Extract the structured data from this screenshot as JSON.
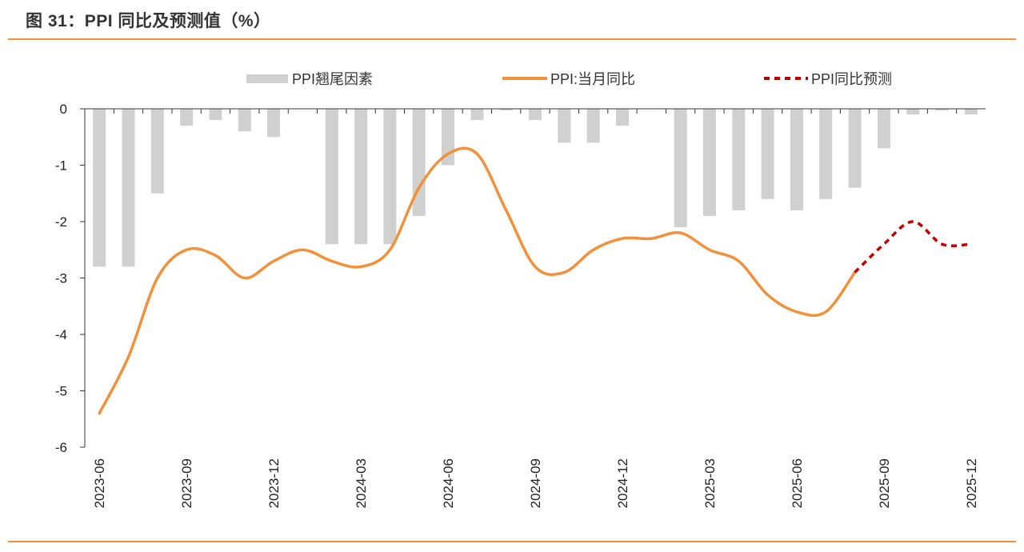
{
  "title": "图 31：PPI 同比及预测值（%）",
  "colors": {
    "bar": "#d0d0d0",
    "line": "#f0913c",
    "forecast": "#c00000",
    "accent_rule": "#f0913c"
  },
  "chart_data": {
    "type": "bar+line",
    "ylim": [
      -6,
      0
    ],
    "yticks": [
      0,
      -1,
      -2,
      -3,
      -4,
      -5,
      -6
    ],
    "months": [
      "2023-06",
      "2023-07",
      "2023-08",
      "2023-09",
      "2023-10",
      "2023-11",
      "2023-12",
      "2024-01",
      "2024-02",
      "2024-03",
      "2024-04",
      "2024-05",
      "2024-06",
      "2024-07",
      "2024-08",
      "2024-09",
      "2024-10",
      "2024-11",
      "2024-12",
      "2025-01",
      "2025-02",
      "2025-03",
      "2025-04",
      "2025-05",
      "2025-06",
      "2025-07",
      "2025-08",
      "2025-09",
      "2025-10",
      "2025-11",
      "2025-12"
    ],
    "xtick_labels": [
      "2023-06",
      "2023-09",
      "2023-12",
      "2024-03",
      "2024-06",
      "2024-09",
      "2024-12",
      "2025-03",
      "2025-06",
      "2025-09",
      "2025-12"
    ],
    "legend": [
      "PPI翘尾因素",
      "PPI:当月同比",
      "PPI同比预测"
    ],
    "series": [
      {
        "name": "PPI翘尾因素",
        "kind": "bar",
        "values": [
          -2.8,
          -2.8,
          -1.5,
          -0.3,
          -0.2,
          -0.4,
          -0.5,
          null,
          -2.4,
          -2.4,
          -2.4,
          -1.9,
          -1.0,
          -0.2,
          -0.03,
          -0.2,
          -0.6,
          -0.6,
          -0.3,
          null,
          -2.1,
          -1.9,
          -1.8,
          -1.6,
          -1.8,
          -1.6,
          -1.4,
          -0.7,
          -0.1,
          -0.03,
          -0.1
        ]
      },
      {
        "name": "PPI:当月同比",
        "kind": "line",
        "values": [
          -5.4,
          -4.4,
          -3.0,
          -2.5,
          -2.6,
          -3.0,
          -2.7,
          -2.5,
          -2.7,
          -2.8,
          -2.5,
          -1.4,
          -0.8,
          -0.8,
          -1.8,
          -2.8,
          -2.9,
          -2.5,
          -2.3,
          -2.3,
          -2.2,
          -2.5,
          -2.7,
          -3.3,
          -3.6,
          -3.6,
          -2.9,
          null,
          null,
          null,
          null
        ]
      },
      {
        "name": "PPI同比预测",
        "kind": "dashed-line",
        "values": [
          null,
          null,
          null,
          null,
          null,
          null,
          null,
          null,
          null,
          null,
          null,
          null,
          null,
          null,
          null,
          null,
          null,
          null,
          null,
          null,
          null,
          null,
          null,
          null,
          null,
          null,
          -2.9,
          -2.4,
          -2.0,
          -2.4,
          -2.4
        ]
      }
    ]
  }
}
